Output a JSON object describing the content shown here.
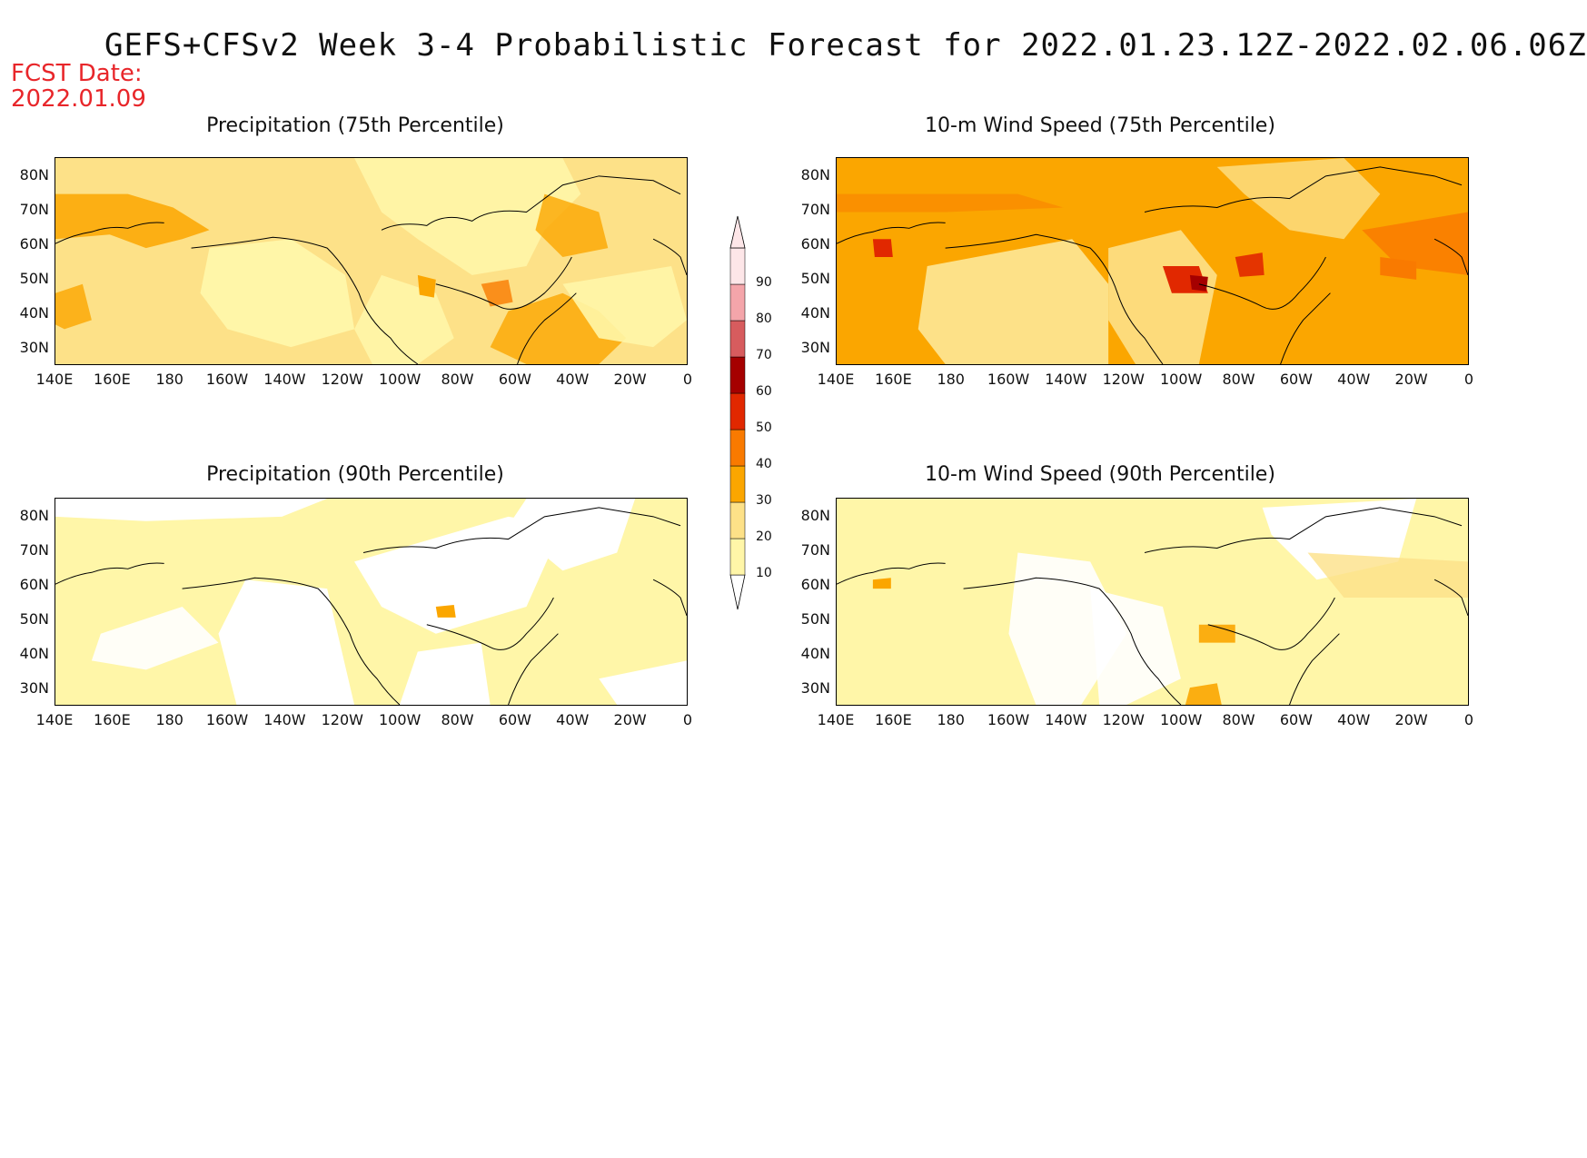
{
  "header": {
    "title": "GEFS+CFSv2 Week 3-4 Probabilistic Forecast for 2022.01.23.12Z-2022.02.06.06Z",
    "fcst_label": "FCST Date:",
    "fcst_date": "2022.01.09",
    "fcst_color": "#e8262a"
  },
  "axes": {
    "lat_ticks": [
      "80N",
      "70N",
      "60N",
      "50N",
      "40N",
      "30N"
    ],
    "lon_ticks": [
      "140E",
      "160E",
      "180",
      "160W",
      "140W",
      "120W",
      "100W",
      "80W",
      "60W",
      "40W",
      "20W",
      "0"
    ]
  },
  "colorbar": {
    "levels": [
      "10",
      "20",
      "30",
      "40",
      "50",
      "60",
      "70",
      "80",
      "90"
    ],
    "colors": [
      "#fff6a8",
      "#fde188",
      "#fba600",
      "#f97a00",
      "#e12800",
      "#a50000",
      "#d75c5e",
      "#f4a5aa",
      "#fde6e8"
    ]
  },
  "panels": [
    {
      "title": "Precipitation (75th Percentile)",
      "background": "#fde188"
    },
    {
      "title": "10-m Wind Speed (75th Percentile)",
      "background": "#fba600"
    },
    {
      "title": "Precipitation (90th Percentile)",
      "background": "#fff6a8"
    },
    {
      "title": "10-m Wind Speed (90th Percentile)",
      "background": "#fff6a8"
    }
  ]
}
